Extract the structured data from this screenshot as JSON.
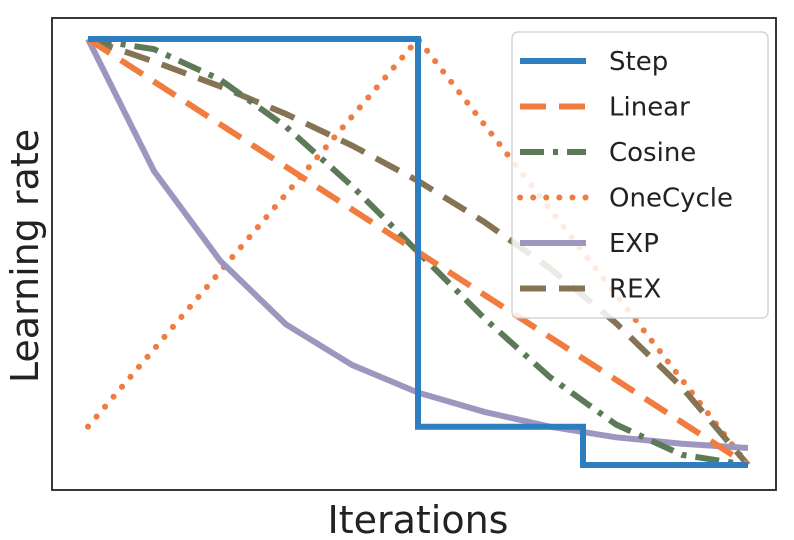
{
  "chart_data": {
    "type": "line",
    "xlabel": "Iterations",
    "ylabel": "Learning rate",
    "xlim": [
      0,
      1
    ],
    "ylim": [
      0,
      1
    ],
    "grid": false,
    "ticks_shown": false,
    "legend_position": "top-right",
    "series": [
      {
        "name": "Step",
        "color": "#2e7dbf",
        "dash": "solid",
        "x": [
          0,
          0.5,
          0.5,
          0.75,
          0.75,
          1.0
        ],
        "y": [
          1.0,
          1.0,
          0.09,
          0.09,
          0.0,
          0.0
        ]
      },
      {
        "name": "Linear",
        "color": "#f07c40",
        "dash": "dashed",
        "x": [
          0,
          0.25,
          0.5,
          0.75,
          1.0
        ],
        "y": [
          1.0,
          0.75,
          0.5,
          0.25,
          0.0
        ]
      },
      {
        "name": "Cosine",
        "color": "#5d7a58",
        "dash": "dashdot",
        "x": [
          0,
          0.1,
          0.2,
          0.3,
          0.4,
          0.5,
          0.6,
          0.7,
          0.8,
          0.9,
          1.0
        ],
        "y": [
          1.0,
          0.976,
          0.905,
          0.794,
          0.655,
          0.5,
          0.345,
          0.206,
          0.095,
          0.024,
          0.0
        ]
      },
      {
        "name": "OneCycle",
        "color": "#f07c40",
        "dash": "dotted",
        "x": [
          0,
          0.5,
          1.0
        ],
        "y": [
          0.09,
          1.0,
          0.0
        ]
      },
      {
        "name": "EXP",
        "color": "#9d97c0",
        "dash": "solid",
        "x": [
          0,
          0.1,
          0.2,
          0.3,
          0.4,
          0.5,
          0.6,
          0.7,
          0.8,
          0.9,
          1.0
        ],
        "y": [
          1.0,
          0.69,
          0.48,
          0.33,
          0.235,
          0.17,
          0.125,
          0.09,
          0.065,
          0.05,
          0.04
        ]
      },
      {
        "name": "REX",
        "color": "#857453",
        "dash": "dashed",
        "x": [
          0,
          0.1,
          0.2,
          0.3,
          0.4,
          0.5,
          0.6,
          0.7,
          0.8,
          0.9,
          1.0
        ],
        "y": [
          1.0,
          0.947,
          0.889,
          0.824,
          0.75,
          0.667,
          0.571,
          0.462,
          0.333,
          0.182,
          0.0
        ]
      }
    ]
  }
}
